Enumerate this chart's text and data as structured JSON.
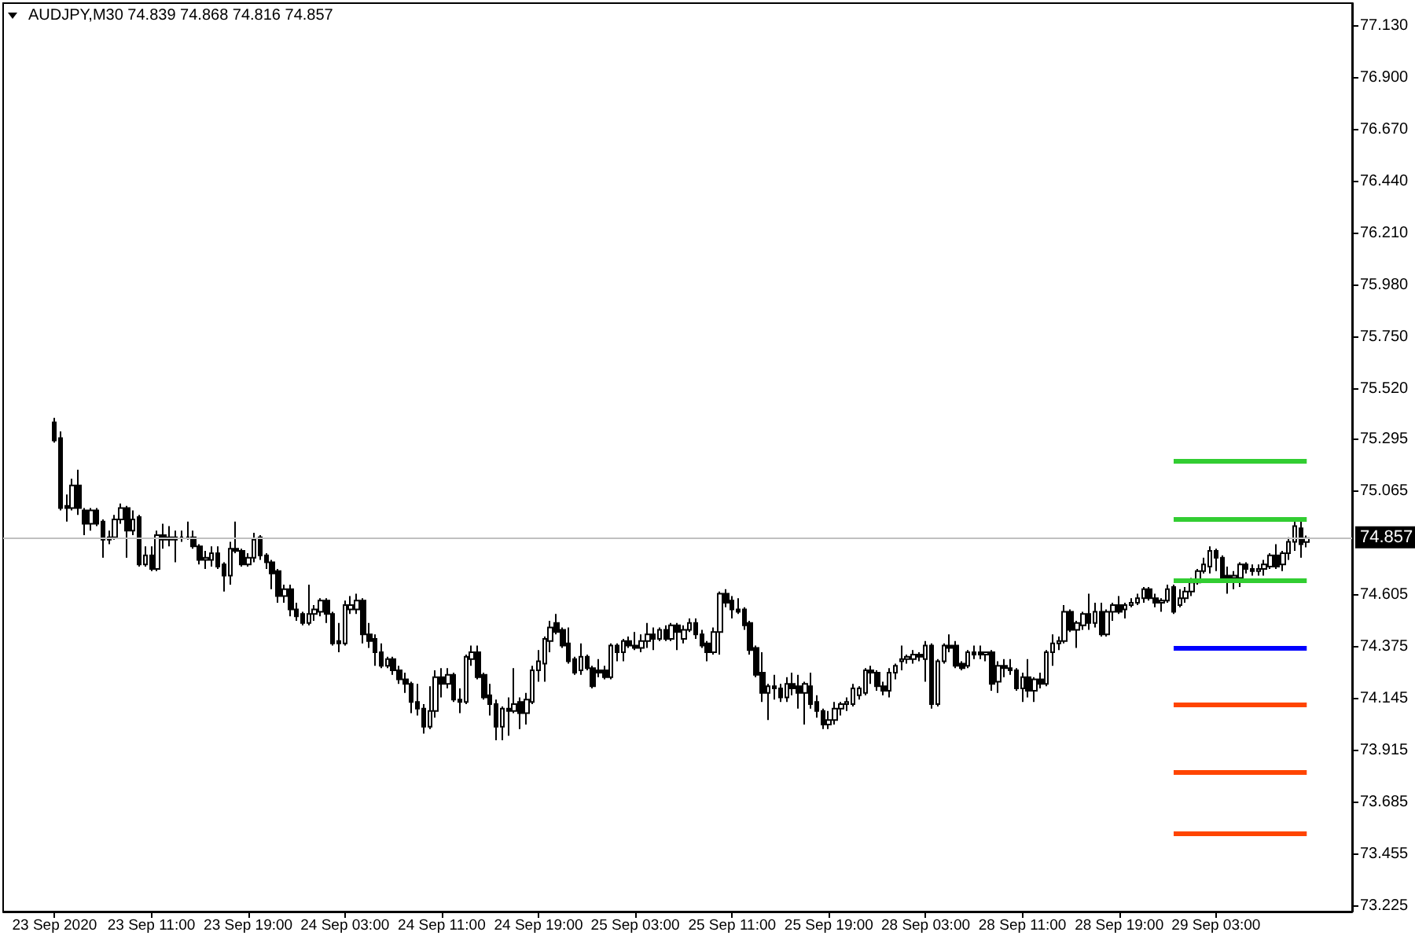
{
  "chart_data": {
    "type": "candlestick",
    "title": "AUDJPY,M30 74.839 74.868 74.816 74.857",
    "color": "#000000",
    "categories": [
      "23 Sep 2020",
      null,
      null,
      null,
      null,
      null,
      null,
      null,
      null,
      null,
      null,
      null,
      null,
      null,
      null,
      null,
      "23 Sep 11:00",
      null,
      null,
      null,
      null,
      null,
      null,
      null,
      null,
      null,
      null,
      null,
      null,
      null,
      null,
      null,
      "23 Sep 19:00",
      null,
      null,
      null,
      null,
      null,
      null,
      null,
      null,
      null,
      null,
      null,
      null,
      null,
      null,
      null,
      "24 Sep 03:00",
      null,
      null,
      null,
      null,
      null,
      null,
      null,
      null,
      null,
      null,
      null,
      null,
      null,
      null,
      null,
      "24 Sep 11:00",
      null,
      null,
      null,
      null,
      null,
      null,
      null,
      null,
      null,
      null,
      null,
      null,
      null,
      null,
      null,
      "24 Sep 19:00",
      null,
      null,
      null,
      null,
      null,
      null,
      null,
      null,
      null,
      null,
      null,
      null,
      null,
      null,
      null,
      "25 Sep 03:00",
      null,
      null,
      null,
      null,
      null,
      null,
      null,
      null,
      null,
      null,
      null,
      null,
      null,
      null,
      null,
      "25 Sep 11:00",
      null,
      null,
      null,
      null,
      null,
      null,
      null,
      null,
      null,
      null,
      null,
      null,
      null,
      null,
      null,
      "25 Sep 19:00",
      null,
      null,
      null,
      null,
      null,
      null,
      null,
      null,
      null,
      null,
      null,
      null,
      null,
      null,
      null,
      "28 Sep 03:00",
      null,
      null,
      null,
      null,
      null,
      null,
      null,
      null,
      null,
      null,
      null,
      null,
      null,
      null,
      null,
      "28 Sep 11:00",
      null,
      null,
      null,
      null,
      null,
      null,
      null,
      null,
      null,
      null,
      null,
      null,
      null,
      null,
      null,
      "28 Sep 19:00",
      null,
      null,
      null,
      null,
      null,
      null,
      null,
      null,
      null,
      null,
      null,
      null,
      null,
      null,
      null,
      "29 Sep 03:00",
      null,
      null,
      null,
      null,
      null,
      null,
      null,
      null,
      null,
      null,
      null,
      null,
      null,
      null,
      null
    ],
    "ohlc": [
      [
        75.37,
        75.39,
        75.28,
        75.29
      ],
      [
        75.3,
        75.33,
        74.98,
        74.99
      ],
      [
        75.0,
        75.05,
        74.93,
        74.99
      ],
      [
        74.99,
        75.12,
        74.98,
        75.09
      ],
      [
        75.09,
        75.16,
        74.96,
        74.99
      ],
      [
        74.98,
        74.99,
        74.87,
        74.92
      ],
      [
        74.92,
        74.99,
        74.89,
        74.98
      ],
      [
        74.98,
        74.99,
        74.91,
        74.92
      ],
      [
        74.93,
        74.94,
        74.77,
        74.85
      ],
      [
        74.85,
        74.89,
        74.83,
        74.86
      ],
      [
        74.86,
        74.96,
        74.85,
        74.94
      ],
      [
        74.94,
        75.01,
        74.92,
        74.99
      ],
      [
        74.99,
        75.0,
        74.77,
        74.89
      ],
      [
        74.89,
        74.98,
        74.87,
        74.94
      ],
      [
        74.95,
        74.96,
        74.73,
        74.74
      ],
      [
        74.74,
        74.82,
        74.73,
        74.78
      ],
      [
        74.78,
        74.82,
        74.71,
        74.72
      ],
      [
        74.72,
        74.89,
        74.71,
        74.87
      ],
      [
        74.87,
        74.92,
        74.81,
        74.85
      ],
      [
        74.86,
        74.91,
        74.82,
        74.85
      ],
      [
        74.85,
        74.89,
        74.75,
        74.86
      ],
      [
        74.86,
        74.89,
        74.84,
        74.86
      ],
      [
        74.86,
        74.93,
        74.85,
        74.86
      ],
      [
        74.86,
        74.89,
        74.81,
        74.82
      ],
      [
        74.82,
        74.83,
        74.74,
        74.76
      ],
      [
        74.76,
        74.8,
        74.72,
        74.77
      ],
      [
        74.76,
        74.82,
        74.73,
        74.79
      ],
      [
        74.79,
        74.82,
        74.72,
        74.73
      ],
      [
        74.74,
        74.75,
        74.62,
        74.69
      ],
      [
        74.69,
        74.84,
        74.65,
        74.81
      ],
      [
        74.81,
        74.93,
        74.79,
        74.8
      ],
      [
        74.8,
        74.81,
        74.73,
        74.74
      ],
      [
        74.74,
        74.79,
        74.73,
        74.77
      ],
      [
        74.77,
        74.88,
        74.75,
        74.85
      ],
      [
        74.86,
        74.87,
        74.76,
        74.78
      ],
      [
        74.78,
        74.79,
        74.72,
        74.75
      ],
      [
        74.75,
        74.76,
        74.63,
        74.7
      ],
      [
        74.71,
        74.72,
        74.57,
        74.6
      ],
      [
        74.6,
        74.65,
        74.57,
        74.63
      ],
      [
        74.63,
        74.65,
        74.51,
        74.54
      ],
      [
        74.54,
        74.57,
        74.49,
        74.51
      ],
      [
        74.52,
        74.53,
        74.47,
        74.48
      ],
      [
        74.48,
        74.65,
        74.47,
        74.52
      ],
      [
        74.52,
        74.56,
        74.49,
        74.54
      ],
      [
        74.53,
        74.59,
        74.51,
        74.58
      ],
      [
        74.58,
        74.59,
        74.48,
        74.52
      ],
      [
        74.52,
        74.53,
        74.38,
        74.39
      ],
      [
        74.4,
        74.48,
        74.35,
        74.39
      ],
      [
        74.39,
        74.58,
        74.38,
        74.56
      ],
      [
        74.54,
        74.6,
        74.52,
        74.56
      ],
      [
        74.54,
        74.61,
        74.52,
        74.58
      ],
      [
        74.58,
        74.59,
        74.39,
        74.43
      ],
      [
        74.43,
        74.48,
        74.37,
        74.4
      ],
      [
        74.41,
        74.43,
        74.29,
        74.35
      ],
      [
        74.35,
        74.39,
        74.28,
        74.29
      ],
      [
        74.29,
        74.33,
        74.28,
        74.32
      ],
      [
        74.32,
        74.33,
        74.25,
        74.27
      ],
      [
        74.27,
        74.29,
        74.21,
        74.23
      ],
      [
        74.23,
        74.26,
        74.17,
        74.21
      ],
      [
        74.21,
        74.22,
        74.08,
        74.13
      ],
      [
        74.13,
        74.21,
        74.07,
        74.1
      ],
      [
        74.1,
        74.12,
        73.99,
        74.02
      ],
      [
        74.02,
        74.2,
        74.01,
        74.09
      ],
      [
        74.09,
        74.27,
        74.06,
        74.24
      ],
      [
        74.24,
        74.28,
        74.15,
        74.21
      ],
      [
        74.21,
        74.28,
        74.19,
        74.25
      ],
      [
        74.25,
        74.26,
        74.13,
        74.14
      ],
      [
        74.14,
        74.19,
        74.08,
        74.13
      ],
      [
        74.13,
        74.34,
        74.12,
        74.33
      ],
      [
        74.32,
        74.38,
        74.29,
        74.35
      ],
      [
        74.35,
        74.38,
        74.23,
        74.24
      ],
      [
        74.25,
        74.26,
        74.14,
        74.15
      ],
      [
        74.16,
        74.21,
        74.07,
        74.12
      ],
      [
        74.12,
        74.14,
        73.96,
        74.02
      ],
      [
        74.02,
        74.11,
        73.96,
        74.1
      ],
      [
        74.1,
        74.15,
        73.98,
        74.09
      ],
      [
        74.09,
        74.28,
        74.08,
        74.12
      ],
      [
        74.13,
        74.15,
        74.01,
        74.08
      ],
      [
        74.08,
        74.17,
        74.03,
        74.14
      ],
      [
        74.13,
        74.29,
        74.12,
        74.27
      ],
      [
        74.27,
        74.36,
        74.22,
        74.31
      ],
      [
        74.3,
        74.42,
        74.22,
        74.41
      ],
      [
        74.4,
        74.49,
        74.35,
        74.46
      ],
      [
        74.48,
        74.52,
        74.43,
        74.44
      ],
      [
        74.45,
        74.46,
        74.37,
        74.38
      ],
      [
        74.39,
        74.46,
        74.3,
        74.31
      ],
      [
        74.32,
        74.33,
        74.25,
        74.26
      ],
      [
        74.27,
        74.39,
        74.25,
        74.33
      ],
      [
        74.33,
        74.34,
        74.27,
        74.28
      ],
      [
        74.28,
        74.29,
        74.19,
        74.2
      ],
      [
        74.27,
        74.32,
        74.24,
        74.26
      ],
      [
        74.27,
        74.29,
        74.23,
        74.24
      ],
      [
        74.24,
        74.39,
        74.23,
        74.38
      ],
      [
        74.38,
        74.39,
        74.31,
        74.35
      ],
      [
        74.35,
        74.41,
        74.31,
        74.4
      ],
      [
        74.4,
        74.42,
        74.37,
        74.38
      ],
      [
        74.38,
        74.44,
        74.36,
        74.37
      ],
      [
        74.37,
        74.43,
        74.35,
        74.4
      ],
      [
        74.4,
        74.48,
        74.37,
        74.43
      ],
      [
        74.43,
        74.46,
        74.36,
        74.41
      ],
      [
        74.41,
        74.46,
        74.4,
        74.45
      ],
      [
        74.45,
        74.47,
        74.4,
        74.41
      ],
      [
        74.41,
        74.48,
        74.4,
        74.47
      ],
      [
        74.47,
        74.48,
        74.36,
        74.44
      ],
      [
        74.41,
        74.47,
        74.39,
        74.45
      ],
      [
        74.45,
        74.5,
        74.44,
        74.48
      ],
      [
        74.48,
        74.5,
        74.41,
        74.43
      ],
      [
        74.43,
        74.45,
        74.37,
        74.38
      ],
      [
        74.39,
        74.4,
        74.31,
        74.35
      ],
      [
        74.35,
        74.46,
        74.34,
        74.44
      ],
      [
        74.44,
        74.62,
        74.34,
        74.61
      ],
      [
        74.61,
        74.63,
        74.55,
        74.57
      ],
      [
        74.58,
        74.6,
        74.5,
        74.54
      ],
      [
        74.54,
        74.59,
        74.52,
        74.53
      ],
      [
        74.54,
        74.55,
        74.45,
        74.47
      ],
      [
        74.48,
        74.49,
        74.34,
        74.36
      ],
      [
        74.37,
        74.38,
        74.24,
        74.25
      ],
      [
        74.26,
        74.35,
        74.13,
        74.17
      ],
      [
        74.17,
        74.21,
        74.05,
        74.2
      ],
      [
        74.2,
        74.25,
        74.14,
        74.19
      ],
      [
        74.19,
        74.21,
        74.13,
        74.15
      ],
      [
        74.15,
        74.24,
        74.13,
        74.21
      ],
      [
        74.21,
        74.26,
        74.16,
        74.19
      ],
      [
        74.2,
        74.25,
        74.1,
        74.17
      ],
      [
        74.17,
        74.22,
        74.03,
        74.21
      ],
      [
        74.2,
        74.26,
        74.1,
        74.12
      ],
      [
        74.13,
        74.16,
        74.06,
        74.09
      ],
      [
        74.09,
        74.1,
        74.01,
        74.03
      ],
      [
        74.03,
        74.09,
        74.01,
        74.05
      ],
      [
        74.05,
        74.13,
        74.03,
        74.1
      ],
      [
        74.1,
        74.13,
        74.07,
        74.12
      ],
      [
        74.12,
        74.15,
        74.09,
        74.13
      ],
      [
        74.12,
        74.21,
        74.11,
        74.19
      ],
      [
        74.16,
        74.2,
        74.14,
        74.19
      ],
      [
        74.17,
        74.28,
        74.16,
        74.27
      ],
      [
        74.27,
        74.29,
        74.21,
        74.26
      ],
      [
        74.26,
        74.27,
        74.18,
        74.2
      ],
      [
        74.2,
        74.22,
        74.16,
        74.18
      ],
      [
        74.18,
        74.28,
        74.15,
        74.26
      ],
      [
        74.26,
        74.3,
        74.23,
        74.29
      ],
      [
        74.31,
        74.38,
        74.27,
        74.32
      ],
      [
        74.32,
        74.34,
        74.3,
        74.33
      ],
      [
        74.32,
        74.36,
        74.3,
        74.34
      ],
      [
        74.34,
        74.35,
        74.31,
        74.33
      ],
      [
        74.32,
        74.4,
        74.22,
        74.38
      ],
      [
        74.38,
        74.39,
        74.1,
        74.12
      ],
      [
        74.12,
        74.32,
        74.11,
        74.31
      ],
      [
        74.31,
        74.39,
        74.3,
        74.38
      ],
      [
        74.38,
        74.43,
        74.35,
        74.37
      ],
      [
        74.38,
        74.4,
        74.28,
        74.29
      ],
      [
        74.3,
        74.31,
        74.27,
        74.28
      ],
      [
        74.29,
        74.36,
        74.28,
        74.35
      ],
      [
        74.35,
        74.38,
        74.32,
        74.34
      ],
      [
        74.35,
        74.38,
        74.32,
        74.34
      ],
      [
        74.34,
        74.35,
        74.31,
        74.35
      ],
      [
        74.35,
        74.36,
        74.18,
        74.21
      ],
      [
        74.22,
        74.31,
        74.17,
        74.29
      ],
      [
        74.29,
        74.32,
        74.24,
        74.28
      ],
      [
        74.28,
        74.32,
        74.25,
        74.27
      ],
      [
        74.27,
        74.28,
        74.18,
        74.19
      ],
      [
        74.19,
        74.26,
        74.13,
        74.24
      ],
      [
        74.24,
        74.32,
        74.15,
        74.18
      ],
      [
        74.18,
        74.24,
        74.13,
        74.23
      ],
      [
        74.23,
        74.26,
        74.19,
        74.21
      ],
      [
        74.21,
        74.36,
        74.2,
        74.35
      ],
      [
        74.35,
        74.43,
        74.29,
        74.39
      ],
      [
        74.39,
        74.42,
        74.36,
        74.4
      ],
      [
        74.4,
        74.56,
        74.39,
        74.53
      ],
      [
        74.53,
        74.54,
        74.44,
        74.45
      ],
      [
        74.45,
        74.49,
        74.37,
        74.48
      ],
      [
        74.47,
        74.53,
        74.45,
        74.52
      ],
      [
        74.52,
        74.61,
        74.45,
        74.48
      ],
      [
        74.48,
        74.57,
        74.46,
        74.53
      ],
      [
        74.53,
        74.57,
        74.42,
        74.43
      ],
      [
        74.43,
        74.54,
        74.42,
        74.53
      ],
      [
        74.53,
        74.57,
        74.49,
        74.56
      ],
      [
        74.56,
        74.6,
        74.52,
        74.53
      ],
      [
        74.54,
        74.57,
        74.5,
        74.56
      ],
      [
        74.56,
        74.59,
        74.55,
        74.57
      ],
      [
        74.57,
        74.61,
        74.56,
        74.59
      ],
      [
        74.59,
        74.64,
        74.57,
        74.63
      ],
      [
        74.63,
        74.64,
        74.58,
        74.59
      ],
      [
        74.59,
        74.61,
        74.55,
        74.57
      ],
      [
        74.57,
        74.59,
        74.53,
        74.58
      ],
      [
        74.58,
        74.65,
        74.57,
        74.63
      ],
      [
        74.64,
        74.65,
        74.52,
        74.53
      ],
      [
        74.56,
        74.63,
        74.55,
        74.59
      ],
      [
        74.59,
        74.64,
        74.57,
        74.62
      ],
      [
        74.62,
        74.68,
        74.6,
        74.66
      ],
      [
        74.66,
        74.72,
        74.65,
        74.71
      ],
      [
        74.71,
        74.77,
        74.7,
        74.74
      ],
      [
        74.73,
        74.82,
        74.7,
        74.8
      ],
      [
        74.8,
        74.81,
        74.71,
        74.77
      ],
      [
        74.77,
        74.78,
        74.67,
        74.68
      ],
      [
        74.69,
        74.73,
        74.61,
        74.68
      ],
      [
        74.68,
        74.71,
        74.63,
        74.69
      ],
      [
        74.68,
        74.75,
        74.64,
        74.74
      ],
      [
        74.74,
        74.75,
        74.7,
        74.72
      ],
      [
        74.72,
        74.74,
        74.69,
        74.71
      ],
      [
        74.71,
        74.74,
        74.69,
        74.72
      ],
      [
        74.72,
        74.76,
        74.69,
        74.74
      ],
      [
        74.73,
        74.79,
        74.72,
        74.78
      ],
      [
        74.78,
        74.83,
        74.72,
        74.73
      ],
      [
        74.74,
        74.8,
        74.71,
        74.79
      ],
      [
        74.79,
        74.86,
        74.76,
        74.84
      ],
      [
        74.84,
        74.93,
        74.8,
        74.91
      ],
      [
        74.9,
        74.93,
        74.77,
        74.83
      ],
      [
        74.839,
        74.868,
        74.816,
        74.857
      ]
    ],
    "ylim": [
      73.2,
      77.23
    ],
    "yticks": [
      73.225,
      73.455,
      73.685,
      73.915,
      74.145,
      74.375,
      74.605,
      75.065,
      75.295,
      {
        "value": 75.52,
        "label": "75.520"
      },
      {
        "value": 75.75,
        "label": "75.750"
      },
      {
        "value": 75.98,
        "label": "75.980"
      },
      {
        "value": 76.21,
        "label": "76.210"
      },
      {
        "value": 76.44,
        "label": "76.440"
      },
      {
        "value": 76.67,
        "label": "76.670"
      },
      {
        "value": 76.9,
        "label": "76.900"
      },
      {
        "value": 77.13,
        "label": "77.130"
      }
    ],
    "ref_lines": [
      {
        "axis": "y",
        "value": 74.857,
        "label": "74.857",
        "color": "#c0c0c0"
      },
      {
        "axis": "y",
        "value": 75.2,
        "color": "#32cd32"
      },
      {
        "axis": "y",
        "value": 74.94,
        "color": "#32cd32"
      },
      {
        "axis": "y",
        "value": 74.67,
        "color": "#32cd32"
      },
      {
        "axis": "y",
        "value": 74.37,
        "color": "#0000ff"
      },
      {
        "axis": "y",
        "value": 74.12,
        "color": "#ff4500"
      },
      {
        "axis": "y",
        "value": 73.82,
        "color": "#ff4500"
      },
      {
        "axis": "y",
        "value": 73.55,
        "color": "#ff4500"
      }
    ]
  }
}
